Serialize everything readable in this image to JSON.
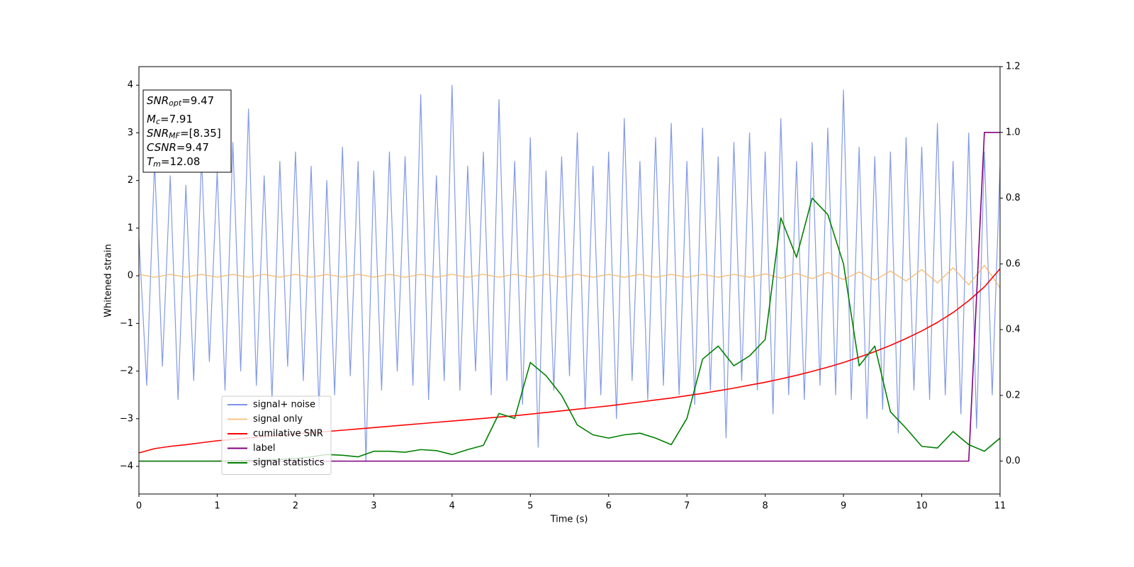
{
  "chart_data": {
    "type": "line",
    "xlabel": "Time (s)",
    "ylabel": "Whitened strain",
    "xlim": [
      0,
      11
    ],
    "ylim": [
      -4.58,
      4.39
    ],
    "y2lim": [
      -0.1,
      1.2
    ],
    "xticks": [
      0,
      1,
      2,
      3,
      4,
      5,
      6,
      7,
      8,
      9,
      10,
      11
    ],
    "yticks": [
      {
        "value": -4,
        "label": "−4"
      },
      {
        "value": -3,
        "label": "−3"
      },
      {
        "value": -2,
        "label": "−2"
      },
      {
        "value": -1,
        "label": "−1"
      },
      0,
      1,
      2,
      3,
      4
    ],
    "y2ticks": [
      {
        "value": 0,
        "label": "0.0"
      },
      0.2,
      0.4,
      0.6,
      0.8,
      {
        "value": 1,
        "label": "1.0"
      },
      1.2
    ],
    "legend_loc": "best",
    "annotations": [
      {
        "base": "SNR",
        "sub": "opt",
        "text": "=9.47"
      },
      {
        "base": "M",
        "sub": "c",
        "text": "=7.91"
      },
      {
        "base": "SNR",
        "sub": "MF",
        "text": "=[8.35]"
      },
      {
        "base": "CSNR",
        "text": "=9.47"
      },
      {
        "base": "T",
        "sub": "m",
        "text": "=12.08"
      }
    ],
    "x": [
      0,
      0.2,
      0.4,
      0.6,
      0.8,
      1.0,
      1.2,
      1.4,
      1.6,
      1.8,
      2.0,
      2.2,
      2.4,
      2.6,
      2.8,
      3.0,
      3.2,
      3.4,
      3.6,
      3.8,
      4.0,
      4.2,
      4.4,
      4.6,
      4.8,
      5.0,
      5.2,
      5.4,
      5.6,
      5.8,
      6.0,
      6.2,
      6.4,
      6.6,
      6.8,
      7.0,
      7.2,
      7.4,
      7.6,
      7.8,
      8.0,
      8.2,
      8.4,
      8.6,
      8.8,
      9.0,
      9.2,
      9.4,
      9.6,
      9.8,
      10.0,
      10.2,
      10.4,
      10.6,
      10.8,
      11.0
    ],
    "series": [
      {
        "name": "signal+ noise",
        "color": "#7b93e6",
        "x": [
          0,
          0.1,
          0.2,
          0.3,
          0.4,
          0.5,
          0.6,
          0.7,
          0.8,
          0.9,
          1.0,
          1.1,
          1.2,
          1.3,
          1.4,
          1.5,
          1.6,
          1.7,
          1.8,
          1.9,
          2.0,
          2.1,
          2.2,
          2.3,
          2.4,
          2.5,
          2.6,
          2.7,
          2.8,
          2.9,
          3.0,
          3.1,
          3.2,
          3.3,
          3.4,
          3.5,
          3.6,
          3.7,
          3.8,
          3.9,
          4.0,
          4.1,
          4.2,
          4.3,
          4.4,
          4.5,
          4.6,
          4.7,
          4.8,
          4.9,
          5.0,
          5.1,
          5.2,
          5.3,
          5.4,
          5.5,
          5.6,
          5.7,
          5.8,
          5.9,
          6.0,
          6.1,
          6.2,
          6.3,
          6.4,
          6.5,
          6.6,
          6.7,
          6.8,
          6.9,
          7.0,
          7.1,
          7.2,
          7.3,
          7.4,
          7.5,
          7.6,
          7.7,
          7.8,
          7.9,
          8.0,
          8.1,
          8.2,
          8.3,
          8.4,
          8.5,
          8.6,
          8.7,
          8.8,
          8.9,
          9.0,
          9.1,
          9.2,
          9.3,
          9.4,
          9.5,
          9.6,
          9.7,
          9.8,
          9.9,
          10.0,
          10.1,
          10.2,
          10.3,
          10.4,
          10.5,
          10.6,
          10.7,
          10.8,
          10.9,
          11.0
        ],
        "values": [
          0.8,
          -2.3,
          2.4,
          -1.9,
          2.1,
          -2.6,
          1.9,
          -2.2,
          2.5,
          -1.8,
          2.2,
          -2.4,
          2.8,
          -2.0,
          3.5,
          -2.3,
          2.1,
          -2.6,
          2.4,
          -1.9,
          2.6,
          -2.2,
          2.3,
          -2.8,
          2.0,
          -2.5,
          2.7,
          -2.1,
          2.4,
          -3.9,
          2.2,
          -2.4,
          2.6,
          -2.0,
          2.5,
          -2.3,
          3.8,
          -2.6,
          2.1,
          -2.2,
          4.0,
          -2.4,
          2.3,
          -2.0,
          2.6,
          -2.5,
          3.7,
          -2.2,
          2.4,
          -2.7,
          2.9,
          -3.6,
          2.2,
          -2.4,
          2.5,
          -2.1,
          3.0,
          -2.8,
          2.3,
          -2.5,
          2.6,
          -3.0,
          3.3,
          -2.2,
          2.4,
          -2.6,
          2.9,
          -2.3,
          3.2,
          -2.5,
          2.4,
          -2.7,
          3.1,
          -2.4,
          2.5,
          -3.4,
          2.8,
          -2.2,
          3.0,
          -2.4,
          2.6,
          -2.9,
          3.3,
          -2.5,
          2.4,
          -2.6,
          2.8,
          -2.3,
          3.1,
          -2.5,
          3.9,
          -2.6,
          2.7,
          -3.0,
          2.5,
          -2.8,
          2.6,
          -3.3,
          2.9,
          -2.4,
          2.7,
          -2.6,
          3.2,
          -2.5,
          2.4,
          -2.9,
          3.0,
          -3.2,
          2.6,
          -2.5,
          2.3
        ]
      },
      {
        "name": "signal only",
        "color": "#f2b766",
        "values": [
          0.03,
          -0.03,
          0.03,
          -0.03,
          0.03,
          -0.03,
          0.03,
          -0.03,
          0.03,
          -0.03,
          0.03,
          -0.03,
          0.03,
          -0.03,
          0.03,
          -0.03,
          0.03,
          -0.03,
          0.03,
          -0.03,
          0.03,
          -0.03,
          0.03,
          -0.03,
          0.03,
          -0.03,
          0.03,
          -0.03,
          0.03,
          -0.03,
          0.03,
          -0.03,
          0.03,
          -0.03,
          0.03,
          -0.03,
          0.03,
          -0.03,
          0.03,
          -0.03,
          0.04,
          -0.05,
          0.05,
          -0.06,
          0.07,
          -0.08,
          0.08,
          -0.09,
          0.1,
          -0.11,
          0.13,
          -0.15,
          0.17,
          -0.19,
          0.22,
          -0.25
        ]
      },
      {
        "name": "cumilative SNR",
        "color": "#ff0000",
        "axis": "y2",
        "values": [
          0.025,
          0.038,
          0.045,
          0.05,
          0.056,
          0.062,
          0.066,
          0.071,
          0.075,
          0.079,
          0.083,
          0.087,
          0.09,
          0.094,
          0.098,
          0.102,
          0.106,
          0.11,
          0.114,
          0.118,
          0.122,
          0.126,
          0.13,
          0.134,
          0.138,
          0.143,
          0.148,
          0.153,
          0.158,
          0.163,
          0.168,
          0.174,
          0.18,
          0.186,
          0.192,
          0.199,
          0.206,
          0.214,
          0.222,
          0.231,
          0.24,
          0.25,
          0.261,
          0.273,
          0.286,
          0.3,
          0.316,
          0.333,
          0.352,
          0.373,
          0.396,
          0.422,
          0.452,
          0.488,
          0.53,
          0.585
        ]
      },
      {
        "name": "label",
        "color": "#800080",
        "axis": "y2",
        "values": [
          0,
          0,
          0,
          0,
          0,
          0,
          0,
          0,
          0,
          0,
          0,
          0,
          0,
          0,
          0,
          0,
          0,
          0,
          0,
          0,
          0,
          0,
          0,
          0,
          0,
          0,
          0,
          0,
          0,
          0,
          0,
          0,
          0,
          0,
          0,
          0,
          0,
          0,
          0,
          0,
          0,
          0,
          0,
          0,
          0,
          0,
          0,
          0,
          0,
          0,
          0,
          0,
          0,
          0,
          1,
          1
        ]
      },
      {
        "name": "signal statistics",
        "color": "#008000",
        "axis": "y2",
        "values": [
          0,
          0,
          0,
          0,
          0,
          0,
          0.001,
          0.002,
          0.003,
          0.005,
          0.008,
          0.013,
          0.02,
          0.018,
          0.013,
          0.03,
          0.03,
          0.027,
          0.035,
          0.032,
          0.02,
          0.035,
          0.048,
          0.145,
          0.13,
          0.3,
          0.26,
          0.2,
          0.11,
          0.08,
          0.07,
          0.08,
          0.085,
          0.07,
          0.05,
          0.13,
          0.31,
          0.35,
          0.29,
          0.32,
          0.37,
          0.74,
          0.62,
          0.8,
          0.75,
          0.6,
          0.29,
          0.35,
          0.15,
          0.1,
          0.045,
          0.04,
          0.09,
          0.05,
          0.03,
          0.07
        ]
      }
    ]
  }
}
